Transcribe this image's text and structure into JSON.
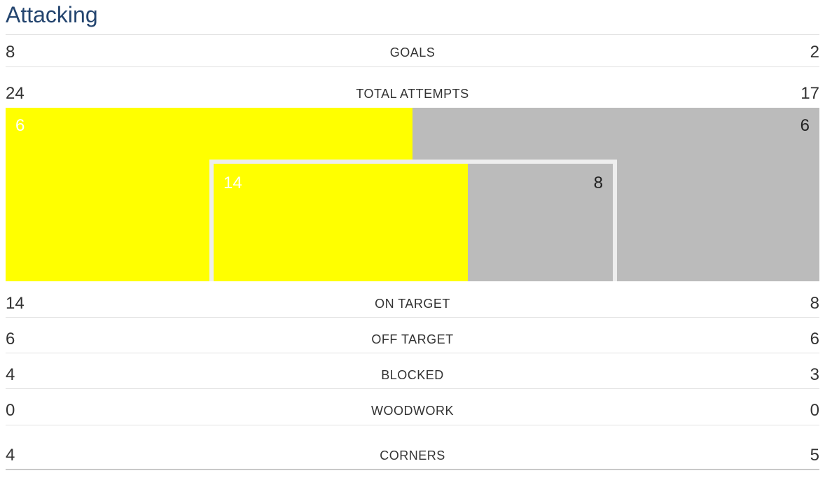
{
  "section": {
    "title": "Attacking"
  },
  "colors": {
    "title": "#24456f",
    "home": "#ffff00",
    "away": "#bbbbbb",
    "goal_frame": "#eeeeee"
  },
  "stats": {
    "goals": {
      "label": "GOALS",
      "home": "8",
      "away": "2"
    },
    "total_attempts": {
      "label": "TOTAL ATTEMPTS",
      "home": "24",
      "away": "17"
    },
    "on_target": {
      "label": "ON TARGET",
      "home": "14",
      "away": "8"
    },
    "off_target": {
      "label": "OFF TARGET",
      "home": "6",
      "away": "6"
    },
    "blocked": {
      "label": "BLOCKED",
      "home": "4",
      "away": "3"
    },
    "woodwork": {
      "label": "WOODWORK",
      "home": "0",
      "away": "0"
    },
    "corners": {
      "label": "CORNERS",
      "home": "4",
      "away": "5"
    }
  },
  "goal_graphic": {
    "outer_home": 6,
    "outer_away": 6,
    "inner_home": 14,
    "inner_away": 8
  }
}
